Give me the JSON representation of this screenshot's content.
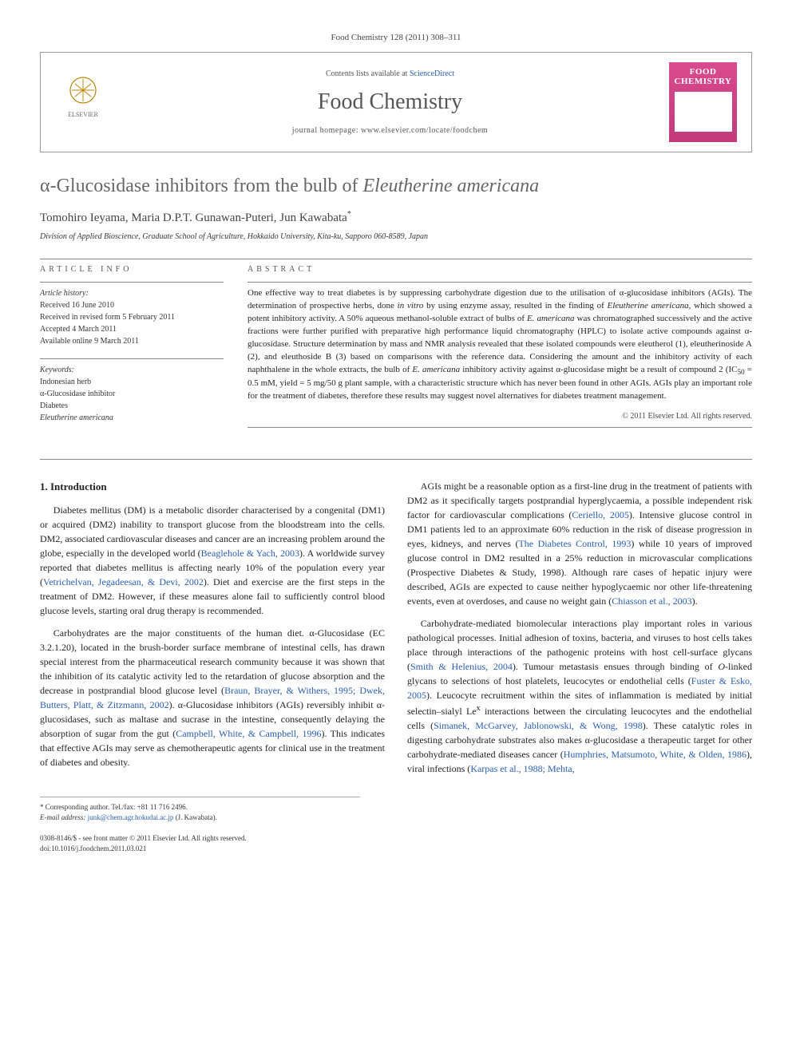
{
  "journal_ref": "Food Chemistry 128 (2011) 308–311",
  "header": {
    "contents_prefix": "Contents lists available at ",
    "contents_link": "ScienceDirect",
    "journal_name": "Food Chemistry",
    "homepage_prefix": "journal homepage: ",
    "homepage_url": "www.elsevier.com/locate/foodchem",
    "publisher_logo_label": "ELSEVIER",
    "cover_title": "FOOD CHEMISTRY"
  },
  "title_html": "α-Glucosidase inhibitors from the bulb of <em>Eleutherine americana</em>",
  "authors": "Tomohiro Ieyama, Maria D.P.T. Gunawan-Puteri, Jun Kawabata",
  "corresponding_mark": "*",
  "affiliation": "Division of Applied Bioscience, Graduate School of Agriculture, Hokkaido University, Kita-ku, Sapporo 060-8589, Japan",
  "article_info": {
    "heading": "ARTICLE INFO",
    "history_label": "Article history:",
    "history": [
      "Received 16 June 2010",
      "Received in revised form 5 February 2011",
      "Accepted 4 March 2011",
      "Available online 9 March 2011"
    ],
    "keywords_label": "Keywords:",
    "keywords": [
      "Indonesian herb",
      "α-Glucosidase inhibitor",
      "Diabetes",
      "Eleutherine americana"
    ]
  },
  "abstract": {
    "heading": "ABSTRACT",
    "text_html": "One effective way to treat diabetes is by suppressing carbohydrate digestion due to the utilisation of α-glucosidase inhibitors (AGIs). The determination of prospective herbs, done <em>in vitro</em> by using enzyme assay, resulted in the finding of <em>Eleutherine americana</em>, which showed a potent inhibitory activity. A 50% aqueous methanol-soluble extract of bulbs of <em>E. americana</em> was chromatographed successively and the active fractions were further purified with preparative high performance liquid chromatography (HPLC) to isolate active compounds against α-glucosidase. Structure determination by mass and NMR analysis revealed that these isolated compounds were eleutherol (1), eleutherinoside A (2), and eleuthoside B (3) based on comparisons with the reference data. Considering the amount and the inhibitory activity of each naphthalene in the whole extracts, the bulb of <em>E. americana</em> inhibitory activity against α-glucosidase might be a result of compound 2 (IC<sub>50</sub> = 0.5 mM, yield = 5 mg/50 g plant sample, with a characteristic structure which has never been found in other AGIs. AGIs play an important role for the treatment of diabetes, therefore these results may suggest novel alternatives for diabetes treatment management.",
    "copyright": "© 2011 Elsevier Ltd. All rights reserved."
  },
  "section1": {
    "heading": "1. Introduction",
    "p1_html": "Diabetes mellitus (DM) is a metabolic disorder characterised by a congenital (DM1) or acquired (DM2) inability to transport glucose from the bloodstream into the cells. DM2, associated cardiovascular diseases and cancer are an increasing problem around the globe, especially in the developed world (<a href=\"#\" data-name=\"citation-link\" data-interactable=\"true\">Beaglehole & Yach, 2003</a>). A worldwide survey reported that diabetes mellitus is affecting nearly 10% of the population every year (<a href=\"#\" data-name=\"citation-link\" data-interactable=\"true\">Vetrichelvan, Jegadeesan, & Devi, 2002</a>). Diet and exercise are the first steps in the treatment of DM2. However, if these measures alone fail to sufficiently control blood glucose levels, starting oral drug therapy is recommended.",
    "p2_html": "Carbohydrates are the major constituents of the human diet. α-Glucosidase (EC 3.2.1.20), located in the brush-border surface membrane of intestinal cells, has drawn special interest from the pharmaceutical research community because it was shown that the inhibition of its catalytic activity led to the retardation of glucose absorption and the decrease in postprandial blood glucose level (<a href=\"#\" data-name=\"citation-link\" data-interactable=\"true\">Braun, Brayer, & Withers, 1995; Dwek, Butters, Platt, & Zitzmann, 2002</a>). α-Glucosidase inhibitors (AGIs) reversibly inhibit α-glucosidases, such as maltase and sucrase in the intestine, consequently delaying the absorption of sugar from the gut (<a href=\"#\" data-name=\"citation-link\" data-interactable=\"true\">Campbell, White, & Campbell, 1996</a>). This indicates that effective AGIs may serve as chemotherapeutic agents for clinical use in the treatment of diabetes and obesity.",
    "p3_html": "AGIs might be a reasonable option as a first-line drug in the treatment of patients with DM2 as it specifically targets postprandial hyperglycaemia, a possible independent risk factor for cardiovascular complications (<a href=\"#\" data-name=\"citation-link\" data-interactable=\"true\">Ceriello, 2005</a>). Intensive glucose control in DM1 patients led to an approximate 60% reduction in the risk of disease progression in eyes, kidneys, and nerves (<a href=\"#\" data-name=\"citation-link\" data-interactable=\"true\">The Diabetes Control, 1993</a>) while 10 years of improved glucose control in DM2 resulted in a 25% reduction in microvascular complications (Prospective Diabetes & Study, 1998). Although rare cases of hepatic injury were described, AGIs are expected to cause neither hypoglycaemic nor other life-threatening events, even at overdoses, and cause no weight gain (<a href=\"#\" data-name=\"citation-link\" data-interactable=\"true\">Chiasson et al., 2003</a>).",
    "p4_html": "Carbohydrate-mediated biomolecular interactions play important roles in various pathological processes. Initial adhesion of toxins, bacteria, and viruses to host cells takes place through interactions of the pathogenic proteins with host cell-surface glycans (<a href=\"#\" data-name=\"citation-link\" data-interactable=\"true\">Smith & Helenius, 2004</a>). Tumour metastasis ensues through binding of <em>O</em>-linked glycans to selections of host platelets, leucocytes or endothelial cells (<a href=\"#\" data-name=\"citation-link\" data-interactable=\"true\">Fuster & Esko, 2005</a>). Leucocyte recruitment within the sites of inflammation is mediated by initial selectin–sialyl Le<sup>x</sup> interactions between the circulating leucocytes and the endothelial cells (<a href=\"#\" data-name=\"citation-link\" data-interactable=\"true\">Simanek, McGarvey, Jablonowski, & Wong, 1998</a>). These catalytic roles in digesting carbohydrate substrates also makes α-glucosidase a therapeutic target for other carbohydrate-mediated diseases cancer (<a href=\"#\" data-name=\"citation-link\" data-interactable=\"true\">Humphries, Matsumoto, White, & Olden, 1986</a>), viral infections (<a href=\"#\" data-name=\"citation-link\" data-interactable=\"true\">Karpas et al., 1988; Mehta,</a>"
  },
  "footnote": {
    "corr_label": "* Corresponding author. Tel./fax: +81 11 716 2496.",
    "email_label": "E-mail address: ",
    "email": "junk@chem.agr.hokudai.ac.jp",
    "email_suffix": " (J. Kawabata)."
  },
  "bottom": {
    "line1": "0308-8146/$ - see front matter © 2011 Elsevier Ltd. All rights reserved.",
    "line2": "doi:10.1016/j.foodchem.2011.03.021"
  },
  "colors": {
    "link": "#2a5db0",
    "cover_bg": "#d94b8f",
    "rule": "#888888"
  }
}
